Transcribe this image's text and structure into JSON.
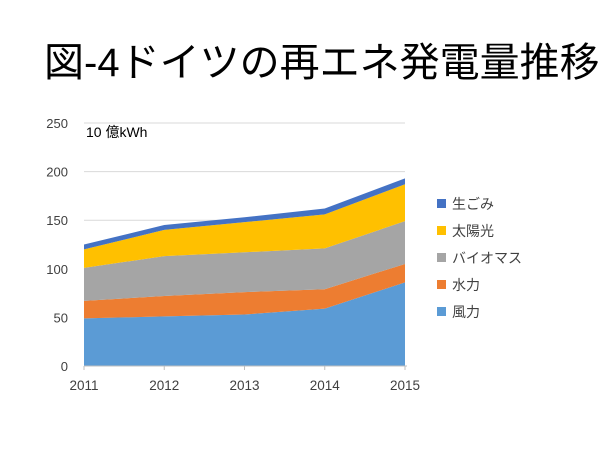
{
  "slide": {
    "title": "図-4ドイツの再エネ発電量推移"
  },
  "chart_data": {
    "type": "area",
    "stacked": true,
    "title": "図-4ドイツの再エネ発電量推移",
    "unit_label": "10 億kWh",
    "categories": [
      "2011",
      "2012",
      "2013",
      "2014",
      "2015"
    ],
    "series": [
      {
        "id": "wind",
        "name": "風力",
        "color": "#5B9BD5",
        "values": [
          49,
          51,
          53,
          59,
          86
        ]
      },
      {
        "id": "hydro",
        "name": "水力",
        "color": "#ED7D31",
        "values": [
          18,
          21,
          23,
          20,
          19
        ]
      },
      {
        "id": "biomass",
        "name": "バイオマス",
        "color": "#A5A5A5",
        "values": [
          34,
          41,
          41,
          42,
          44
        ]
      },
      {
        "id": "solar",
        "name": "太陽光",
        "color": "#FFC000",
        "values": [
          19,
          27,
          31,
          35,
          38
        ]
      },
      {
        "id": "waste",
        "name": "生ごみ",
        "color": "#4472C4",
        "values": [
          5,
          5,
          5,
          6,
          6
        ]
      }
    ],
    "totals": [
      125,
      145,
      153,
      162,
      193
    ],
    "legend_order": [
      "waste",
      "solar",
      "biomass",
      "hydro",
      "wind"
    ],
    "legend_position": "right",
    "xlabel": "",
    "ylabel": "10 億kWh",
    "ylim": [
      0,
      250
    ],
    "yticks": [
      0,
      50,
      100,
      150,
      200,
      250
    ],
    "grid": true,
    "gridline_color": "#D9D9D9",
    "axis_color": "#BFBFBF",
    "tick_label_color": "#404040",
    "background_color": "#FFFFFF"
  }
}
